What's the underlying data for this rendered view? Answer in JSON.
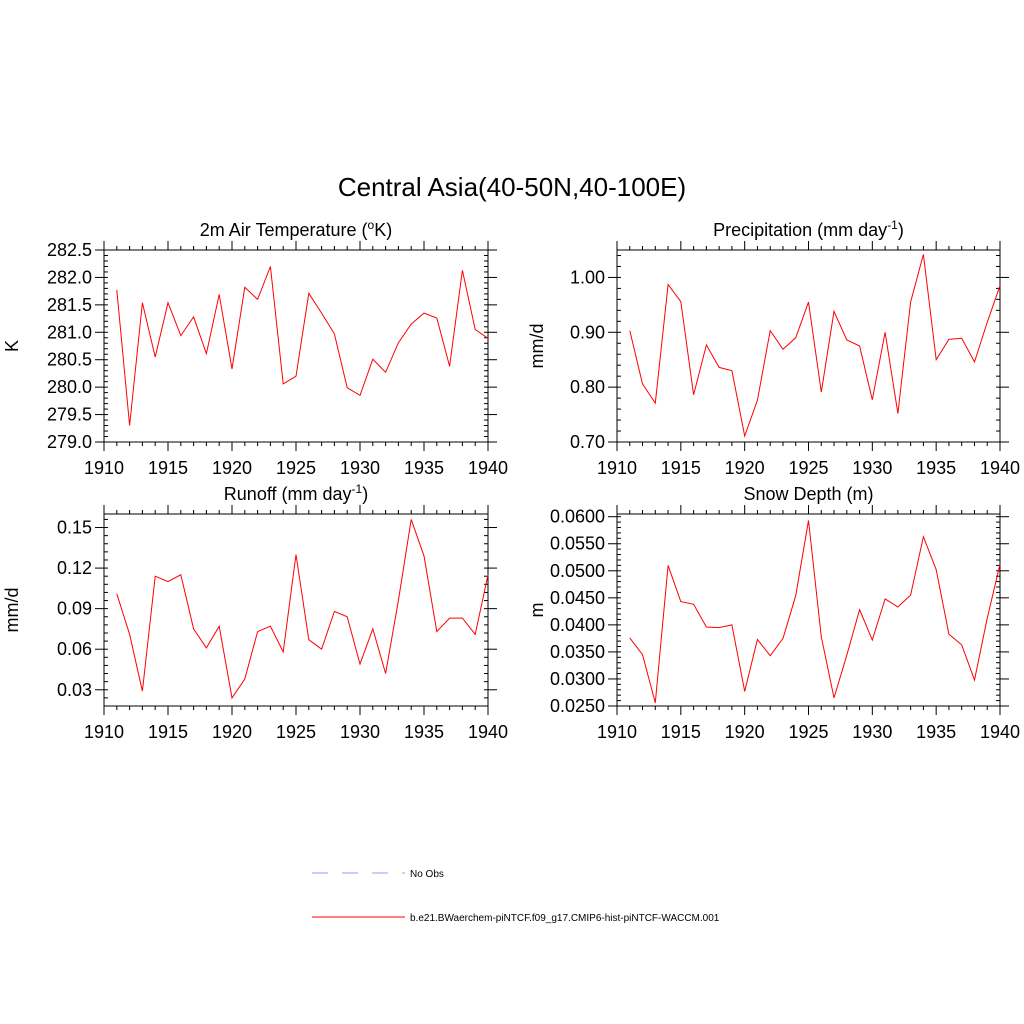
{
  "figure": {
    "title": "Central Asia(40-50N,40-100E)"
  },
  "legend": {
    "items": [
      {
        "label": "No Obs",
        "color": "#9999ff",
        "dash": true
      },
      {
        "label": "b.e21.BWaerchem-piNTCF.f09_g17.CMIP6-hist-piNTCF-WACCM.001",
        "color": "#ff0000",
        "dash": false
      }
    ]
  },
  "chart_data": [
    {
      "type": "line",
      "title_main": "2m Air Temperature (",
      "title_sup": "o",
      "title_rest": "K)",
      "ylabel": "K",
      "xlabel": "",
      "xlim": [
        1910,
        1940
      ],
      "ylim": [
        279.0,
        282.5
      ],
      "xticks": [
        1910,
        1915,
        1920,
        1925,
        1930,
        1935,
        1940
      ],
      "yticks": [
        279.0,
        279.5,
        280.0,
        280.5,
        281.0,
        281.5,
        282.0,
        282.5
      ],
      "ytick_labels": [
        "279.0",
        "279.5",
        "280.0",
        "280.5",
        "281.0",
        "281.5",
        "282.0",
        "282.5"
      ],
      "series": [
        {
          "color": "#ff0000",
          "x": [
            1911,
            1912,
            1913,
            1914,
            1915,
            1916,
            1917,
            1918,
            1919,
            1920,
            1921,
            1922,
            1923,
            1924,
            1925,
            1926,
            1927,
            1928,
            1929,
            1930,
            1931,
            1932,
            1933,
            1934,
            1935,
            1936,
            1937,
            1938,
            1939,
            1940
          ],
          "y": [
            281.77,
            279.3,
            281.54,
            280.55,
            281.54,
            280.94,
            281.28,
            280.61,
            281.69,
            280.33,
            281.82,
            281.6,
            282.2,
            280.06,
            280.2,
            281.71,
            281.35,
            280.97,
            279.99,
            279.85,
            280.51,
            280.27,
            280.81,
            281.15,
            281.35,
            281.26,
            280.38,
            282.13,
            281.05,
            280.89
          ]
        }
      ]
    },
    {
      "type": "line",
      "title_main": "Precipitation (mm day",
      "title_sup": "-1",
      "title_rest": ")",
      "ylabel": "mm/d",
      "xlabel": "",
      "xlim": [
        1910,
        1940
      ],
      "ylim": [
        0.7,
        1.05
      ],
      "xticks": [
        1910,
        1915,
        1920,
        1925,
        1930,
        1935,
        1940
      ],
      "yticks": [
        0.7,
        0.8,
        0.9,
        1.0
      ],
      "ytick_labels": [
        "0.70",
        "0.80",
        "0.90",
        "1.00"
      ],
      "series": [
        {
          "color": "#ff0000",
          "x": [
            1911,
            1912,
            1913,
            1914,
            1915,
            1916,
            1917,
            1918,
            1919,
            1920,
            1921,
            1922,
            1923,
            1924,
            1925,
            1926,
            1927,
            1928,
            1929,
            1930,
            1931,
            1932,
            1933,
            1934,
            1935,
            1936,
            1937,
            1938,
            1939,
            1940
          ],
          "y": [
            0.903,
            0.806,
            0.771,
            0.987,
            0.956,
            0.786,
            0.877,
            0.836,
            0.83,
            0.711,
            0.776,
            0.903,
            0.869,
            0.89,
            0.955,
            0.791,
            0.938,
            0.886,
            0.875,
            0.777,
            0.9,
            0.752,
            0.955,
            1.042,
            0.85,
            0.887,
            0.889,
            0.846,
            0.918,
            0.985
          ]
        }
      ]
    },
    {
      "type": "line",
      "title_main": "Runoff (mm day",
      "title_sup": "-1",
      "title_rest": ")",
      "ylabel": "mm/d",
      "xlabel": "",
      "xlim": [
        1910,
        1940
      ],
      "ylim": [
        0.018,
        0.16
      ],
      "xticks": [
        1910,
        1915,
        1920,
        1925,
        1930,
        1935,
        1940
      ],
      "yticks": [
        0.03,
        0.06,
        0.09,
        0.12,
        0.15
      ],
      "ytick_labels": [
        "0.03",
        "0.06",
        "0.09",
        "0.12",
        "0.15"
      ],
      "series": [
        {
          "color": "#ff0000",
          "x": [
            1911,
            1912,
            1913,
            1914,
            1915,
            1916,
            1917,
            1918,
            1919,
            1920,
            1921,
            1922,
            1923,
            1924,
            1925,
            1926,
            1927,
            1928,
            1929,
            1930,
            1931,
            1932,
            1933,
            1934,
            1935,
            1936,
            1937,
            1938,
            1939,
            1940
          ],
          "y": [
            0.101,
            0.071,
            0.029,
            0.114,
            0.11,
            0.115,
            0.075,
            0.061,
            0.077,
            0.024,
            0.038,
            0.073,
            0.077,
            0.058,
            0.13,
            0.067,
            0.06,
            0.088,
            0.084,
            0.049,
            0.075,
            0.042,
            0.096,
            0.156,
            0.129,
            0.073,
            0.083,
            0.083,
            0.071,
            0.115
          ]
        }
      ]
    },
    {
      "type": "line",
      "title_main": "Snow Depth (m)",
      "title_sup": "",
      "title_rest": "",
      "ylabel": "m",
      "xlabel": "",
      "xlim": [
        1910,
        1940
      ],
      "ylim": [
        0.025,
        0.0605
      ],
      "xticks": [
        1910,
        1915,
        1920,
        1925,
        1930,
        1935,
        1940
      ],
      "yticks": [
        0.025,
        0.03,
        0.035,
        0.04,
        0.045,
        0.05,
        0.055,
        0.06
      ],
      "ytick_labels": [
        "0.0250",
        "0.0300",
        "0.0350",
        "0.0400",
        "0.0450",
        "0.0500",
        "0.0550",
        "0.0600"
      ],
      "series": [
        {
          "color": "#ff0000",
          "x": [
            1911,
            1912,
            1913,
            1914,
            1915,
            1916,
            1917,
            1918,
            1919,
            1920,
            1921,
            1922,
            1923,
            1924,
            1925,
            1926,
            1927,
            1928,
            1929,
            1930,
            1931,
            1932,
            1933,
            1934,
            1935,
            1936,
            1937,
            1938,
            1939,
            1940
          ],
          "y": [
            0.0376,
            0.0345,
            0.0256,
            0.051,
            0.0443,
            0.0438,
            0.0396,
            0.0395,
            0.04,
            0.0277,
            0.0373,
            0.0343,
            0.0375,
            0.0454,
            0.0593,
            0.0378,
            0.0265,
            0.0344,
            0.0428,
            0.0372,
            0.0448,
            0.0433,
            0.0455,
            0.0563,
            0.0502,
            0.0383,
            0.0363,
            0.0298,
            0.0412,
            0.0512
          ]
        }
      ]
    }
  ]
}
